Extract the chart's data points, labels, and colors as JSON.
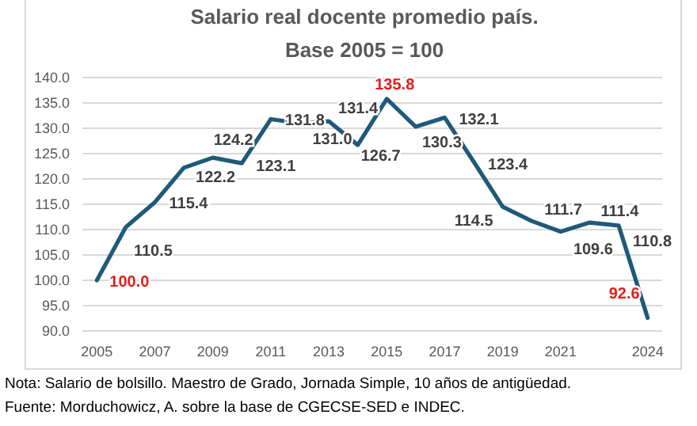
{
  "chart_data": {
    "type": "line",
    "title": "Salario real docente promedio país.",
    "subtitle": "Base 2005 = 100",
    "x": [
      2005,
      2006,
      2007,
      2008,
      2009,
      2010,
      2011,
      2012,
      2013,
      2014,
      2015,
      2016,
      2017,
      2018,
      2019,
      2020,
      2021,
      2022,
      2023,
      2024
    ],
    "series": [
      {
        "color": "#1f5a78",
        "values": [
          100.0,
          110.5,
          115.4,
          122.2,
          124.2,
          123.1,
          131.8,
          131.0,
          131.4,
          126.7,
          135.8,
          130.3,
          132.1,
          123.4,
          114.5,
          111.7,
          109.6,
          111.4,
          110.8,
          92.6
        ]
      }
    ],
    "value_labels": [
      "100.0",
      "110.5",
      "115.4",
      "122.2",
      "124.2",
      "123.1",
      "131.8",
      "131.0",
      "131.4",
      "126.7",
      "135.8",
      "130.3",
      "132.1",
      "123.4",
      "114.5",
      "111.7",
      "109.6",
      "111.4",
      "110.8",
      "92.6"
    ],
    "xlim": [
      2004.5,
      2024.5
    ],
    "xticks": [
      2005,
      2007,
      2009,
      2011,
      2013,
      2015,
      2017,
      2019,
      2021,
      2024
    ],
    "ylim": [
      90,
      140
    ],
    "yticks": [
      {
        "value": 90,
        "label": "90.0"
      },
      {
        "value": 95,
        "label": "95.0"
      },
      {
        "value": 100,
        "label": "100.0"
      },
      {
        "value": 105,
        "label": "105.0"
      },
      {
        "value": 110,
        "label": "110.0"
      },
      {
        "value": 115,
        "label": "115.0"
      },
      {
        "value": 120,
        "label": "120.0"
      },
      {
        "value": 125,
        "label": "125.0"
      },
      {
        "value": 130,
        "label": "130.0"
      },
      {
        "value": 135,
        "label": "135.0"
      },
      {
        "value": 140,
        "label": "140.0"
      }
    ],
    "grid": "y",
    "marker": "none",
    "line_style": "solid",
    "annotations": [
      "Nota: Salario de bolsillo. Maestro de Grado, Jornada Simple, 10 años de antigüedad.",
      "Fuente: Morduchowicz, A. sobre la base de CGECSE-SED e INDEC."
    ]
  }
}
